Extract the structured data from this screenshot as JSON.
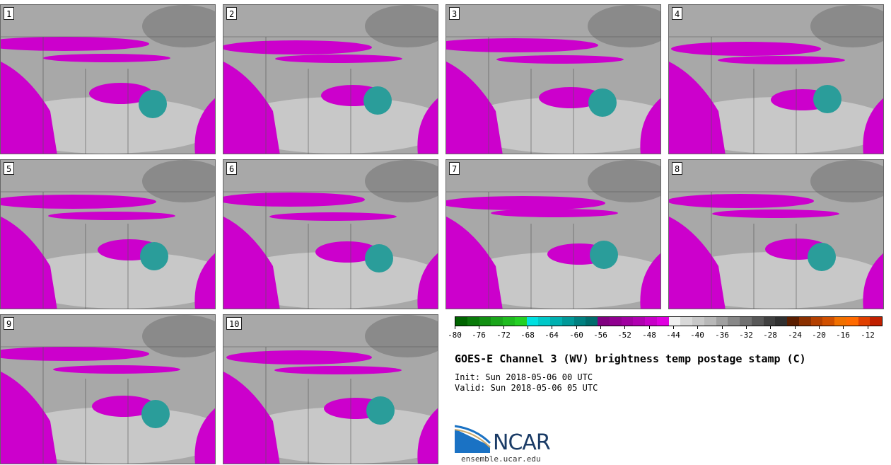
{
  "panels": [
    {
      "label": "1"
    },
    {
      "label": "2"
    },
    {
      "label": "3"
    },
    {
      "label": "4"
    },
    {
      "label": "5"
    },
    {
      "label": "6"
    },
    {
      "label": "7"
    },
    {
      "label": "8"
    },
    {
      "label": "9"
    },
    {
      "label": "10"
    }
  ],
  "colorbar": {
    "colors": [
      "#006400",
      "#0a7a0a",
      "#128f12",
      "#1aa51a",
      "#1fbb1f",
      "#24d024",
      "#00e0e0",
      "#00c8c8",
      "#00b0b0",
      "#009898",
      "#008080",
      "#006c6c",
      "#800080",
      "#900090",
      "#a000a0",
      "#b000b0",
      "#c800c8",
      "#e000e0",
      "#f0f0f0",
      "#d8d8d8",
      "#c8c8c8",
      "#b8b8b8",
      "#a0a0a0",
      "#888888",
      "#707070",
      "#585858",
      "#404040",
      "#303030",
      "#5a1e00",
      "#8b3000",
      "#b34000",
      "#d05000",
      "#f07000",
      "#ff6a00",
      "#e04000",
      "#c02000"
    ],
    "tick_labels": [
      "-80",
      "-76",
      "-72",
      "-68",
      "-64",
      "-60",
      "-56",
      "-52",
      "-48",
      "-44",
      "-40",
      "-36",
      "-32",
      "-28",
      "-24",
      "-20",
      "-16",
      "-12"
    ]
  },
  "title": "GOES-E Channel 3 (WV) brightness temp postage stamp (C)",
  "init": "Init: Sun 2018-05-06 00 UTC",
  "valid": "Valid: Sun 2018-05-06 05 UTC",
  "logo_text": "NCAR",
  "site": "ensemble.ucar.edu",
  "colors": {
    "magenta": "#cc00cc",
    "teal": "#2a9d9a",
    "gray": "#a8a8a8",
    "light": "#d4d4d4"
  }
}
